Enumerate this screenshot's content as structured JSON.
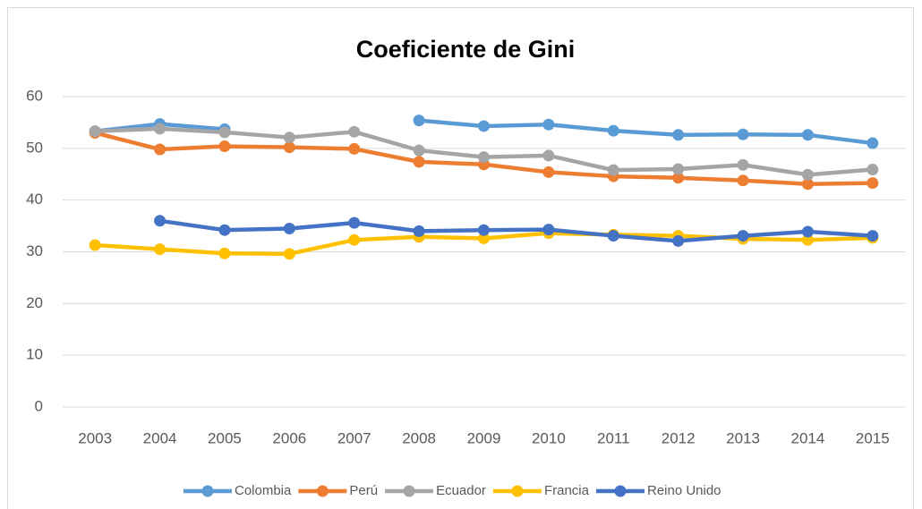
{
  "chart_data": {
    "type": "line",
    "title": "Coeficiente de Gini",
    "categories": [
      "2003",
      "2004",
      "2005",
      "2006",
      "2007",
      "2008",
      "2009",
      "2010",
      "2011",
      "2012",
      "2013",
      "2014",
      "2015"
    ],
    "series": [
      {
        "name": "Colombia",
        "color": "#5B9BD5",
        "values": [
          53.3,
          54.7,
          53.7,
          null,
          null,
          55.4,
          54.3,
          54.6,
          53.4,
          52.6,
          52.7,
          52.6,
          51.0
        ]
      },
      {
        "name": "Perú",
        "color": "#ED7D31",
        "values": [
          53.0,
          49.8,
          50.4,
          50.2,
          49.9,
          47.4,
          46.9,
          45.4,
          44.6,
          44.3,
          43.8,
          43.1,
          43.3
        ]
      },
      {
        "name": "Ecuador",
        "color": "#A5A5A5",
        "values": [
          53.3,
          53.8,
          53.1,
          52.1,
          53.2,
          49.6,
          48.3,
          48.6,
          45.8,
          46.0,
          46.8,
          44.9,
          45.9
        ]
      },
      {
        "name": "Francia",
        "color": "#FFC000",
        "values": [
          31.3,
          30.5,
          29.7,
          29.6,
          32.3,
          32.9,
          32.6,
          33.6,
          33.3,
          33.1,
          32.5,
          32.3,
          32.7
        ]
      },
      {
        "name": "Reino Unido",
        "color": "#4472C4",
        "values": [
          null,
          36.0,
          34.2,
          34.5,
          35.6,
          34.0,
          34.2,
          34.3,
          33.1,
          32.1,
          33.1,
          33.9,
          33.1
        ]
      }
    ],
    "ylim": [
      0,
      60
    ],
    "yticks": [
      0,
      10,
      20,
      30,
      40,
      50,
      60
    ],
    "grid": true,
    "legend": "bottom"
  }
}
